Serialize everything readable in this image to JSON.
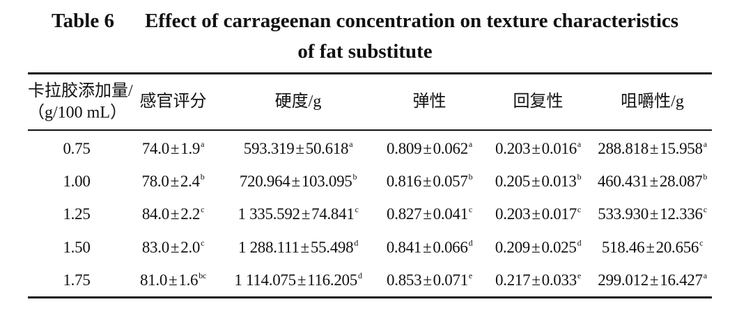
{
  "caption": {
    "label": "Table 6",
    "title_line1": "Effect of carrageenan concentration on texture characteristics",
    "title_line2": "of fat substitute"
  },
  "table": {
    "headers": {
      "concentration_line1": "卡拉胶添加量/",
      "concentration_line2": "（g/100 mL）",
      "sensory": "感官评分",
      "hardness": "硬度/g",
      "springiness": "弹性",
      "resilience": "回复性",
      "chewiness": "咀嚼性/g"
    },
    "pm": "±",
    "rows": [
      {
        "concentration": "0.75",
        "sensory": {
          "mean": "74.0",
          "sd": "1.9",
          "sig": "a"
        },
        "hardness": {
          "mean": "593.319",
          "sd": "50.618",
          "sig": "a"
        },
        "springiness": {
          "mean": "0.809",
          "sd": "0.062",
          "sig": "a"
        },
        "resilience": {
          "mean": "0.203",
          "sd": "0.016",
          "sig": "a"
        },
        "chewiness": {
          "mean": "288.818",
          "sd": "15.958",
          "sig": "a"
        }
      },
      {
        "concentration": "1.00",
        "sensory": {
          "mean": "78.0",
          "sd": "2.4",
          "sig": "b"
        },
        "hardness": {
          "mean": "720.964",
          "sd": "103.095",
          "sig": "b"
        },
        "springiness": {
          "mean": "0.816",
          "sd": "0.057",
          "sig": "b"
        },
        "resilience": {
          "mean": "0.205",
          "sd": "0.013",
          "sig": "b"
        },
        "chewiness": {
          "mean": "460.431",
          "sd": "28.087",
          "sig": "b"
        }
      },
      {
        "concentration": "1.25",
        "sensory": {
          "mean": "84.0",
          "sd": "2.2",
          "sig": "c"
        },
        "hardness": {
          "mean": "1 335.592",
          "sd": "74.841",
          "sig": "c"
        },
        "springiness": {
          "mean": "0.827",
          "sd": "0.041",
          "sig": "c"
        },
        "resilience": {
          "mean": "0.203",
          "sd": "0.017",
          "sig": "c"
        },
        "chewiness": {
          "mean": "533.930",
          "sd": "12.336",
          "sig": "c"
        }
      },
      {
        "concentration": "1.50",
        "sensory": {
          "mean": "83.0",
          "sd": "2.0",
          "sig": "c"
        },
        "hardness": {
          "mean": "1 288.111",
          "sd": "55.498",
          "sig": "d"
        },
        "springiness": {
          "mean": "0.841",
          "sd": "0.066",
          "sig": "d"
        },
        "resilience": {
          "mean": "0.209",
          "sd": "0.025",
          "sig": "d"
        },
        "chewiness": {
          "mean": "518.46",
          "sd": "20.656",
          "sig": "c"
        }
      },
      {
        "concentration": "1.75",
        "sensory": {
          "mean": "81.0",
          "sd": "1.6",
          "sig": "bc"
        },
        "hardness": {
          "mean": "1 114.075",
          "sd": "116.205",
          "sig": "d"
        },
        "springiness": {
          "mean": "0.853",
          "sd": "0.071",
          "sig": "e"
        },
        "resilience": {
          "mean": "0.217",
          "sd": "0.033",
          "sig": "e"
        },
        "chewiness": {
          "mean": "299.012",
          "sd": "16.427",
          "sig": "a"
        }
      }
    ]
  }
}
